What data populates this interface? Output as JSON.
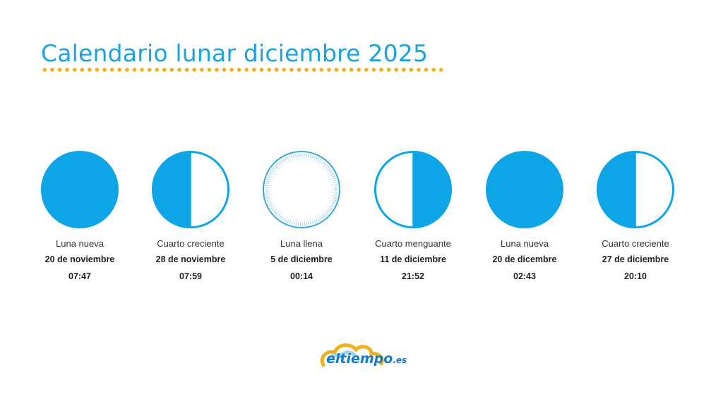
{
  "title": "Calendario lunar diciembre 2025",
  "colors": {
    "accent": "#1aa3dc",
    "dots": "#f2b01e",
    "logo_blue": "#1479c7"
  },
  "phases": [
    {
      "name": "Luna nueva",
      "date": "20 de noviembre",
      "time": "07:47",
      "icon": "new-moon-icon"
    },
    {
      "name": "Cuarto creciente",
      "date": "28 de noviembre",
      "time": "07:59",
      "icon": "first-quarter-moon-icon"
    },
    {
      "name": "Luna llena",
      "date": "5 de diciembre",
      "time": "00:14",
      "icon": "full-moon-icon"
    },
    {
      "name": "Cuarto menguante",
      "date": "11 de diciembre",
      "time": "21:52",
      "icon": "last-quarter-moon-icon"
    },
    {
      "name": "Luna nueva",
      "date": "20 de dicembre",
      "time": "02:43",
      "icon": "new-moon-icon"
    },
    {
      "name": "Cuarto creciente",
      "date": "27 de diciembre",
      "time": "20:10",
      "icon": "first-quarter-moon-icon"
    }
  ],
  "logo": {
    "name": "eltiempo",
    "suffix": ".es"
  }
}
